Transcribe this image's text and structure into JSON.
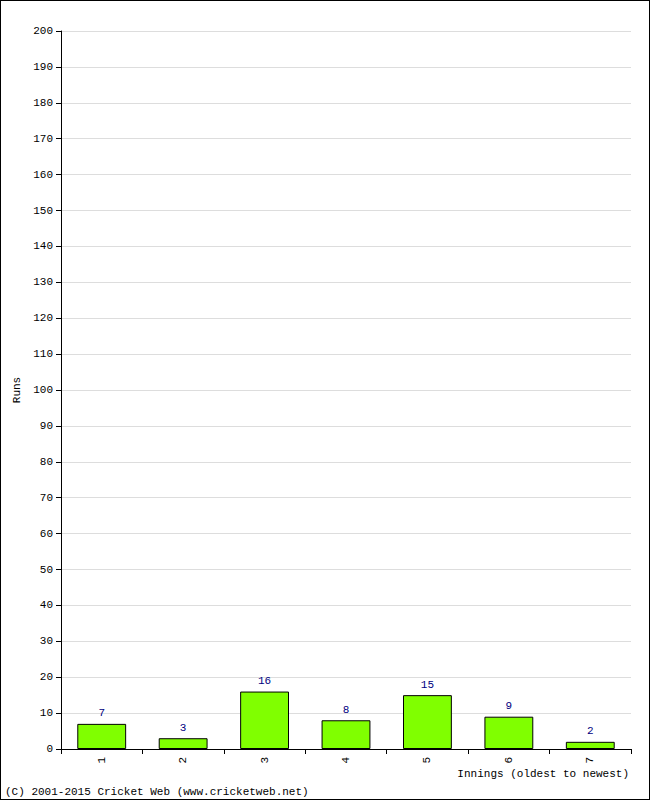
{
  "chart_data": {
    "type": "bar",
    "x_label": "Innings (oldest to newest)",
    "y_label": "Runs",
    "annotations": [
      "(C) 2001-2015 Cricket Web (www.cricketweb.net)"
    ],
    "categories": [
      "1",
      "2",
      "3",
      "4",
      "5",
      "6",
      "7"
    ],
    "values": [
      7,
      3,
      16,
      8,
      15,
      9,
      2
    ],
    "color": "#80ff00",
    "ylim": [
      0,
      200
    ],
    "yticks": [
      0,
      10,
      20,
      30,
      40,
      50,
      60,
      70,
      80,
      90,
      100,
      110,
      120,
      130,
      140,
      150,
      160,
      170,
      180,
      190,
      200
    ],
    "grid": true,
    "data_labels": true
  }
}
